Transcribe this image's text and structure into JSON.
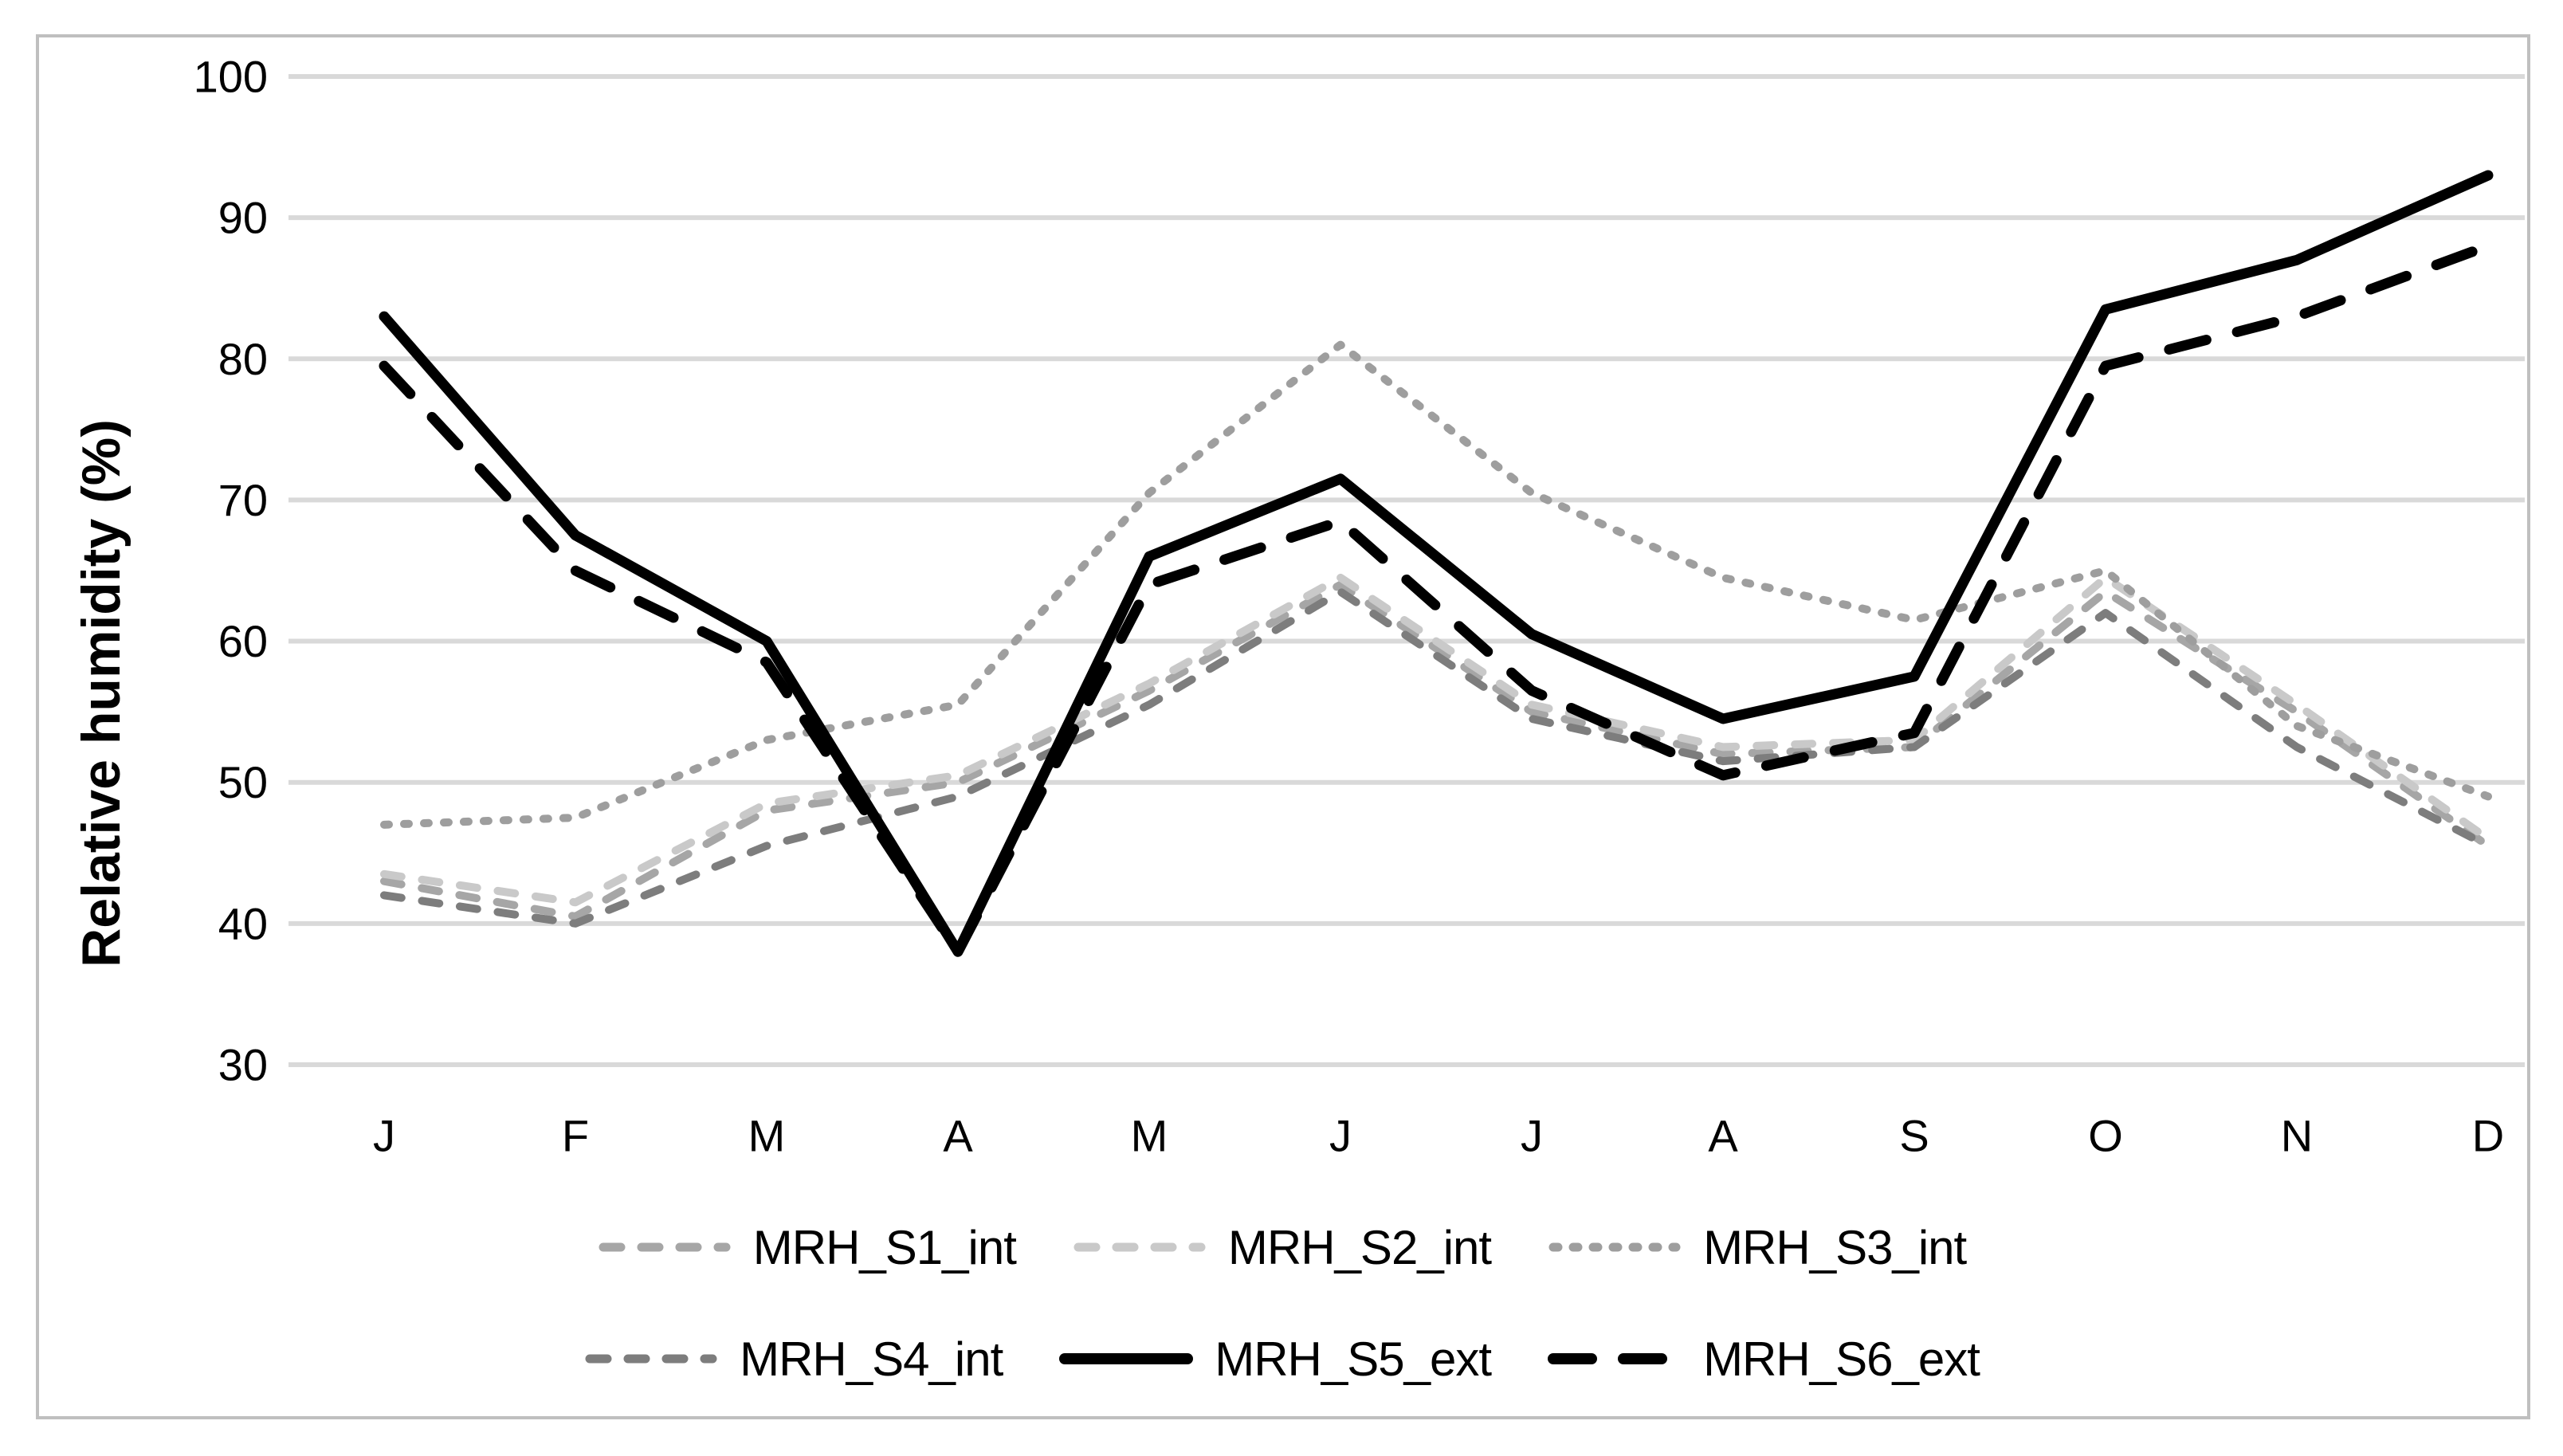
{
  "figure": {
    "background": "#ffffff",
    "border_color": "#bfbfbf"
  },
  "chart_data": {
    "type": "line",
    "title": "",
    "xlabel": "",
    "ylabel": "Relative humidity (%)",
    "categories": [
      "J",
      "F",
      "M",
      "A",
      "M",
      "J",
      "J",
      "A",
      "S",
      "O",
      "N",
      "D"
    ],
    "ylim": [
      30,
      100
    ],
    "yticks": [
      100,
      90,
      80,
      70,
      60,
      50,
      40,
      30
    ],
    "grid": "horizontal",
    "gridline_color": "#d9d9d9",
    "legend_position": "bottom",
    "series": [
      {
        "name": "MRH_S1_int",
        "color": "#a6a6a6",
        "dash": "dash",
        "width": 10,
        "values": [
          43,
          40.5,
          48,
          50,
          56.5,
          64,
          55,
          52,
          52.5,
          63.5,
          55,
          45.5
        ]
      },
      {
        "name": "MRH_S2_int",
        "color": "#c9c9c9",
        "dash": "dash",
        "width": 10,
        "values": [
          43.5,
          41.5,
          48.5,
          50.5,
          57,
          64.5,
          55.5,
          52.5,
          53,
          64.5,
          55.5,
          46
        ]
      },
      {
        "name": "MRH_S3_int",
        "color": "#9e9e9e",
        "dash": "dot",
        "width": 10,
        "values": [
          47,
          47.5,
          53,
          55.5,
          70.5,
          81,
          70.5,
          64.5,
          61.5,
          65,
          54,
          49
        ]
      },
      {
        "name": "MRH_S4_int",
        "color": "#7d7d7d",
        "dash": "dash",
        "width": 10,
        "values": [
          42,
          40,
          45.5,
          49,
          55.5,
          63.5,
          54.5,
          51.5,
          52.5,
          62,
          52.5,
          45.5
        ]
      },
      {
        "name": "MRH_S5_ext",
        "color": "#000000",
        "dash": "solid",
        "width": 13,
        "values": [
          83,
          67.5,
          60,
          38,
          66,
          71.5,
          60.5,
          54.5,
          57.5,
          83.5,
          87,
          93
        ]
      },
      {
        "name": "MRH_S6_ext",
        "color": "#000000",
        "dash": "longdash",
        "width": 13,
        "values": [
          79.5,
          65,
          58.5,
          38,
          64,
          68.5,
          56.5,
          50.5,
          53.5,
          79.5,
          83,
          88
        ]
      }
    ],
    "legend_rows": [
      [
        "MRH_S1_int",
        "MRH_S2_int",
        "MRH_S3_int"
      ],
      [
        "MRH_S4_int",
        "MRH_S5_ext",
        "MRH_S6_ext"
      ]
    ]
  }
}
